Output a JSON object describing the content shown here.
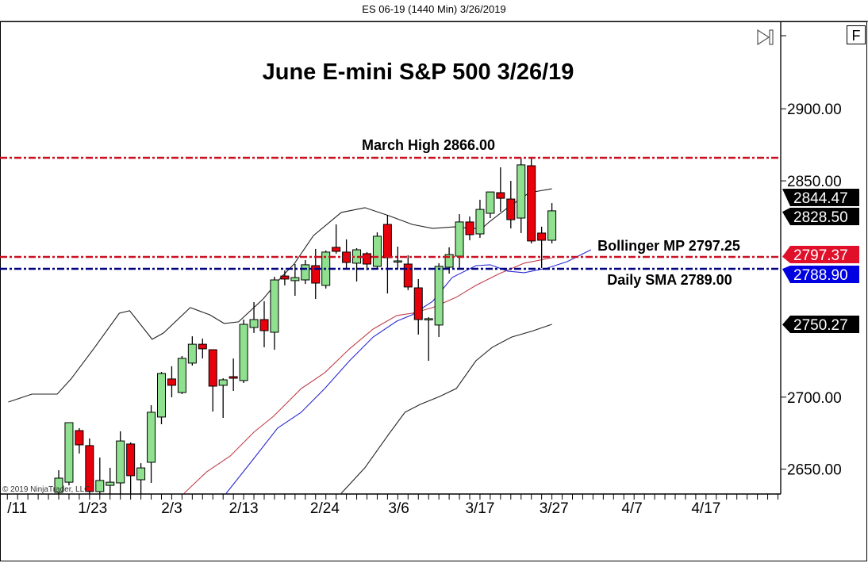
{
  "header": {
    "title": "ES 06-19 (1440 Min)  3/26/2019"
  },
  "toolbar": {
    "f_button": "F",
    "scroll_end_icon": "skip-to-end-icon"
  },
  "copyright": "© 2019 NinjaTrader, LLC",
  "colors": {
    "up": "#8fe08f",
    "down": "#e8000b",
    "upper_band": "#222222",
    "bollinger_mid": "#c0404a",
    "sma": "#2a2ad0",
    "level_red": "#cc1020",
    "level_blue": "#000080"
  },
  "chart_data": {
    "type": "candlestick",
    "title": "June E-mini S&P 500 3/26/19",
    "x_unit": "bar index",
    "y_ticks": [
      2900,
      2850,
      2700,
      2650
    ],
    "y_tick_labels": [
      "2900.00",
      "2850.00",
      "2700.00",
      "2650.00"
    ],
    "x_tick_labels": [
      {
        "label": "/11",
        "bar": -5
      },
      {
        "label": "1/23",
        "bar": 3.3
      },
      {
        "label": "2/3",
        "bar": 11
      },
      {
        "label": "2/13",
        "bar": 18
      },
      {
        "label": "2/24",
        "bar": 25.9
      },
      {
        "label": "3/6",
        "bar": 33.1
      },
      {
        "label": "3/17",
        "bar": 41
      },
      {
        "label": "3/27",
        "bar": 48.2
      },
      {
        "label": "4/7",
        "bar": 55.8
      },
      {
        "label": "4/17",
        "bar": 63
      }
    ],
    "candles_ohlc": [
      [
        2633.9,
        2649.3,
        2631.7,
        2643.8
      ],
      [
        2641.0,
        2682.3,
        2638.8,
        2682.3
      ],
      [
        2676.8,
        2678.5,
        2660.9,
        2666.9
      ],
      [
        2666.4,
        2671.3,
        2631.7,
        2634.5
      ],
      [
        2634.5,
        2658.1,
        2632.3,
        2642.2
      ],
      [
        2638.8,
        2651.0,
        2632.8,
        2641.0
      ],
      [
        2640.5,
        2676.3,
        2632.8,
        2669.6
      ],
      [
        2667.5,
        2668.6,
        2632.8,
        2645.5
      ],
      [
        2642.7,
        2654.2,
        2632.8,
        2650.9
      ],
      [
        2654.8,
        2694.4,
        2640.5,
        2689.5
      ],
      [
        2686.2,
        2717.5,
        2681.2,
        2716.4
      ],
      [
        2712.6,
        2721.4,
        2699.9,
        2708.2
      ],
      [
        2703.2,
        2728.5,
        2702.1,
        2726.9
      ],
      [
        2723.6,
        2742.2,
        2721.9,
        2736.7
      ],
      [
        2736.7,
        2740.6,
        2726.8,
        2733.5
      ],
      [
        2732.9,
        2732.9,
        2690.0,
        2707.6
      ],
      [
        2708.2,
        2713.1,
        2685.6,
        2712.0
      ],
      [
        2714.2,
        2726.8,
        2704.3,
        2713.1
      ],
      [
        2711.5,
        2753.8,
        2709.8,
        2750.5
      ],
      [
        2748.3,
        2765.9,
        2744.5,
        2753.8
      ],
      [
        2753.8,
        2766.5,
        2734.6,
        2746.1
      ],
      [
        2745.0,
        2783.5,
        2732.9,
        2781.3
      ],
      [
        2784.0,
        2787.9,
        2777.5,
        2781.9
      ],
      [
        2780.8,
        2792.3,
        2770.3,
        2782.9
      ],
      [
        2781.3,
        2795.1,
        2778.5,
        2791.8
      ],
      [
        2791.2,
        2802.8,
        2768.1,
        2779.1
      ],
      [
        2777.5,
        2801.7,
        2775.3,
        2800.6
      ],
      [
        2803.9,
        2819.8,
        2799.5,
        2801.1
      ],
      [
        2800.6,
        2809.4,
        2789.0,
        2793.4
      ],
      [
        2792.9,
        2803.3,
        2780.2,
        2802.2
      ],
      [
        2799.5,
        2800.6,
        2788.0,
        2792.3
      ],
      [
        2790.7,
        2814.3,
        2789.6,
        2811.6
      ],
      [
        2819.8,
        2826.4,
        2771.9,
        2796.7
      ],
      [
        2794.5,
        2804.4,
        2788.5,
        2794.5
      ],
      [
        2792.3,
        2798.4,
        2774.2,
        2776.4
      ],
      [
        2775.8,
        2781.9,
        2743.4,
        2753.8
      ],
      [
        2754.4,
        2755.5,
        2725.2,
        2754.4
      ],
      [
        2750.0,
        2792.9,
        2741.7,
        2790.7
      ],
      [
        2790.1,
        2803.9,
        2785.7,
        2798.9
      ],
      [
        2797.8,
        2826.9,
        2788.5,
        2821.5
      ],
      [
        2821.5,
        2825.3,
        2808.8,
        2812.7
      ],
      [
        2813.2,
        2836.9,
        2810.5,
        2830.2
      ],
      [
        2827.5,
        2842.3,
        2824.2,
        2842.3
      ],
      [
        2841.8,
        2859.4,
        2828.6,
        2837.9
      ],
      [
        2837.4,
        2850.0,
        2817.0,
        2823.1
      ],
      [
        2824.2,
        2866.0,
        2813.8,
        2861.1
      ],
      [
        2860.5,
        2866.0,
        2806.6,
        2808.3
      ],
      [
        2813.8,
        2818.2,
        2789.6,
        2808.8
      ],
      [
        2808.8,
        2834.6,
        2806.6,
        2829.2
      ]
    ],
    "series": [
      {
        "key": "upper_band",
        "points": [
          [
            -4.9,
            2696.6
          ],
          [
            -2.6,
            2702.1
          ],
          [
            -0.15,
            2702.1
          ],
          [
            1.2,
            2712.6
          ],
          [
            3.4,
            2733.5
          ],
          [
            5.9,
            2758.2
          ],
          [
            6.9,
            2759.9
          ],
          [
            9.1,
            2740.1
          ],
          [
            10.2,
            2744.5
          ],
          [
            12.8,
            2762.1
          ],
          [
            14.7,
            2757.1
          ],
          [
            16.1,
            2751.1
          ],
          [
            17.5,
            2752.2
          ],
          [
            19.9,
            2768.1
          ],
          [
            21.7,
            2783.5
          ],
          [
            22.9,
            2792.3
          ],
          [
            24.8,
            2812.1
          ],
          [
            27.5,
            2828.1
          ],
          [
            29.8,
            2831.4
          ],
          [
            32.1,
            2825.9
          ],
          [
            34.4,
            2819.8
          ],
          [
            36.4,
            2817.0
          ],
          [
            38.5,
            2818.1
          ],
          [
            40.1,
            2817.0
          ],
          [
            41.2,
            2817.0
          ],
          [
            41.9,
            2821.5
          ],
          [
            43.7,
            2831.4
          ],
          [
            45.8,
            2841.8
          ],
          [
            48,
            2844.5
          ]
        ]
      },
      {
        "key": "lower_band",
        "points": [
          [
            27.5,
            2633.3
          ],
          [
            29.8,
            2651.0
          ],
          [
            32.1,
            2674.1
          ],
          [
            33.7,
            2689.5
          ],
          [
            35.2,
            2695.0
          ],
          [
            37.1,
            2700.5
          ],
          [
            38.7,
            2706.0
          ],
          [
            40.6,
            2725.2
          ],
          [
            42.2,
            2734.6
          ],
          [
            44.1,
            2741.7
          ],
          [
            46.0,
            2745.6
          ],
          [
            48,
            2750.5
          ]
        ]
      },
      {
        "key": "bollinger_mid",
        "points": [
          [
            12.2,
            2633.3
          ],
          [
            14.4,
            2648.2
          ],
          [
            16.7,
            2659.2
          ],
          [
            19.0,
            2675.7
          ],
          [
            20.9,
            2686.7
          ],
          [
            23.6,
            2705.9
          ],
          [
            25.9,
            2717.0
          ],
          [
            28.3,
            2733.5
          ],
          [
            30.6,
            2747.2
          ],
          [
            32.9,
            2756.6
          ],
          [
            34.4,
            2758.2
          ],
          [
            36.4,
            2762.1
          ],
          [
            38.7,
            2769.3
          ],
          [
            40.6,
            2777.5
          ],
          [
            42.9,
            2785.7
          ],
          [
            45.3,
            2792.9
          ],
          [
            48,
            2796.7
          ]
        ]
      },
      {
        "key": "sma",
        "points": [
          [
            16.3,
            2633.3
          ],
          [
            19.0,
            2657.5
          ],
          [
            21.3,
            2678.5
          ],
          [
            23.6,
            2689.5
          ],
          [
            25.9,
            2706.0
          ],
          [
            28.3,
            2725.2
          ],
          [
            30.6,
            2741.7
          ],
          [
            32.9,
            2752.7
          ],
          [
            34.4,
            2757.1
          ],
          [
            36.4,
            2766.5
          ],
          [
            38.3,
            2783.0
          ],
          [
            40.6,
            2791.2
          ],
          [
            42.0,
            2791.8
          ],
          [
            43.7,
            2787.4
          ],
          [
            45.3,
            2786.3
          ],
          [
            47.6,
            2789.6
          ],
          [
            49.5,
            2794.0
          ],
          [
            51.8,
            2802.2
          ]
        ]
      }
    ],
    "levels": [
      {
        "label": "March High 2866.00",
        "value": 2866.0,
        "color": "level_red"
      },
      {
        "label": "Bollinger MP 2797.25",
        "value": 2797.25,
        "color": "level_red"
      },
      {
        "label": "Daily SMA 2789.00",
        "value": 2789.0,
        "color": "level_blue"
      }
    ],
    "price_tags": [
      {
        "label": "2844.47",
        "value": 2844.47,
        "bg": "#000000"
      },
      {
        "label": "2828.50",
        "value": 2828.5,
        "bg": "#000000"
      },
      {
        "label": "2788.90",
        "value": 2788.9,
        "bg": "#0000e0"
      },
      {
        "label": "2797.37",
        "value": 2797.37,
        "bg": "#e0102a"
      },
      {
        "label": "2750.27",
        "value": 2750.27,
        "bg": "#000000"
      }
    ]
  }
}
